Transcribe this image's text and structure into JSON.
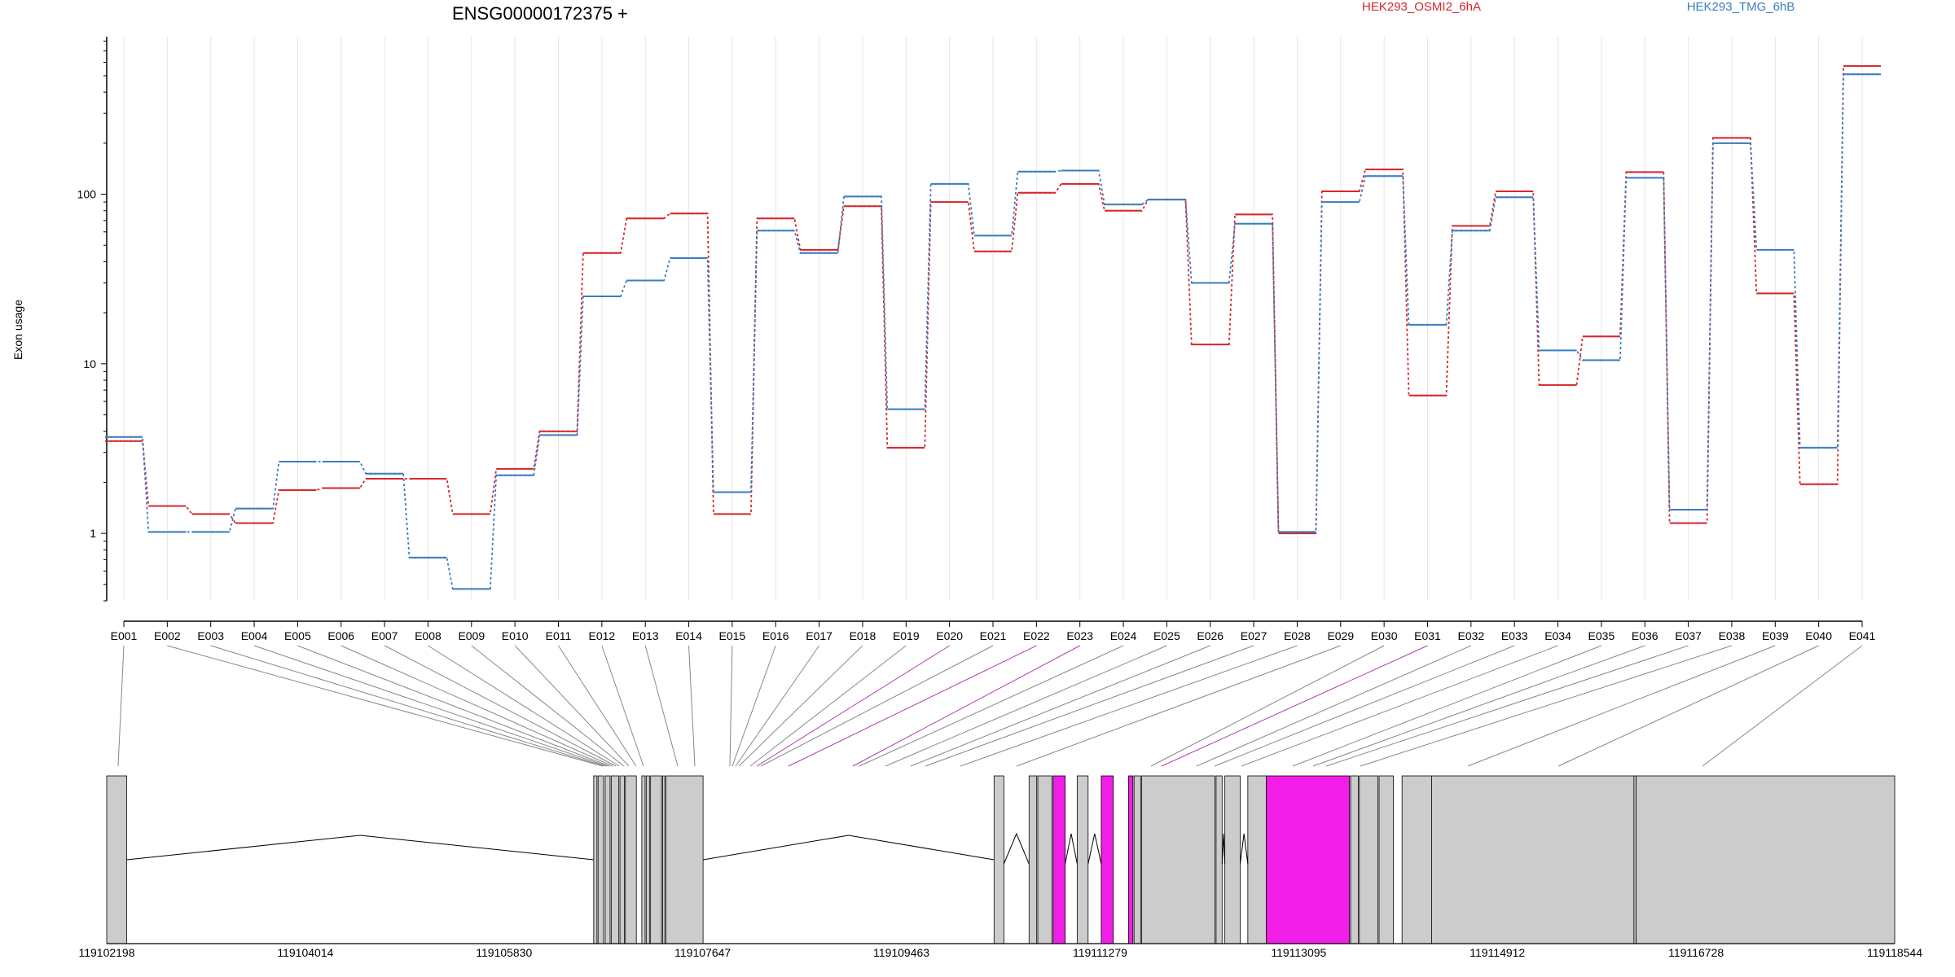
{
  "chart_data": {
    "type": "line",
    "title": "ENSG00000172375 +",
    "ylabel": "Exon usage",
    "y_scale": "log",
    "y_tick_labels": [
      "1",
      "10",
      "100"
    ],
    "y_ticks": [
      1,
      10,
      100
    ],
    "ylim": [
      0.4,
      850
    ],
    "grid": false,
    "legend_placement": "top",
    "categories": [
      "E001",
      "E002",
      "E003",
      "E004",
      "E005",
      "E006",
      "E007",
      "E008",
      "E009",
      "E010",
      "E011",
      "E012",
      "E013",
      "E014",
      "E015",
      "E016",
      "E017",
      "E018",
      "E019",
      "E020",
      "E021",
      "E022",
      "E023",
      "E024",
      "E025",
      "E026",
      "E027",
      "E028",
      "E029",
      "E030",
      "E031",
      "E032",
      "E033",
      "E034",
      "E035",
      "E036",
      "E037",
      "E038",
      "E039",
      "E040",
      "E041"
    ],
    "series": [
      {
        "name": "HEK293_OSMI2_6hA",
        "color": "#d7262b",
        "values": [
          3.5,
          1.45,
          1.3,
          1.15,
          1.8,
          1.85,
          2.1,
          2.1,
          1.3,
          2.4,
          4.0,
          45,
          72,
          77,
          1.3,
          72,
          47,
          85,
          3.2,
          90,
          46,
          102,
          115,
          80,
          93,
          13,
          76,
          1.0,
          104,
          140,
          6.5,
          65,
          104,
          7.5,
          14.5,
          135,
          1.15,
          215,
          26,
          1.95,
          570
        ]
      },
      {
        "name": "HEK293_TMG_6hB",
        "color": "#3a7dc0",
        "values": [
          3.7,
          1.02,
          1.02,
          1.4,
          2.65,
          2.65,
          2.25,
          0.72,
          0.47,
          2.2,
          3.8,
          25,
          31,
          42,
          1.75,
          61,
          45,
          97,
          5.4,
          115,
          57,
          136,
          138,
          87,
          93,
          30,
          67,
          1.02,
          90,
          128,
          17,
          61,
          96,
          12,
          10.5,
          125,
          1.38,
          200,
          47,
          3.2,
          510
        ]
      }
    ],
    "highlight_color": "#f01ee6",
    "exon_fill_color": "#cccccc",
    "genomic_axis_labels": [
      "119102198",
      "119104014",
      "119105830",
      "119107647",
      "119109463",
      "119111279",
      "119113095",
      "119114912",
      "119116728",
      "119118544"
    ],
    "genomic_range": [
      119102198,
      119118544
    ],
    "highlighted_exons": [
      "E020",
      "E022",
      "E023",
      "E031"
    ]
  }
}
